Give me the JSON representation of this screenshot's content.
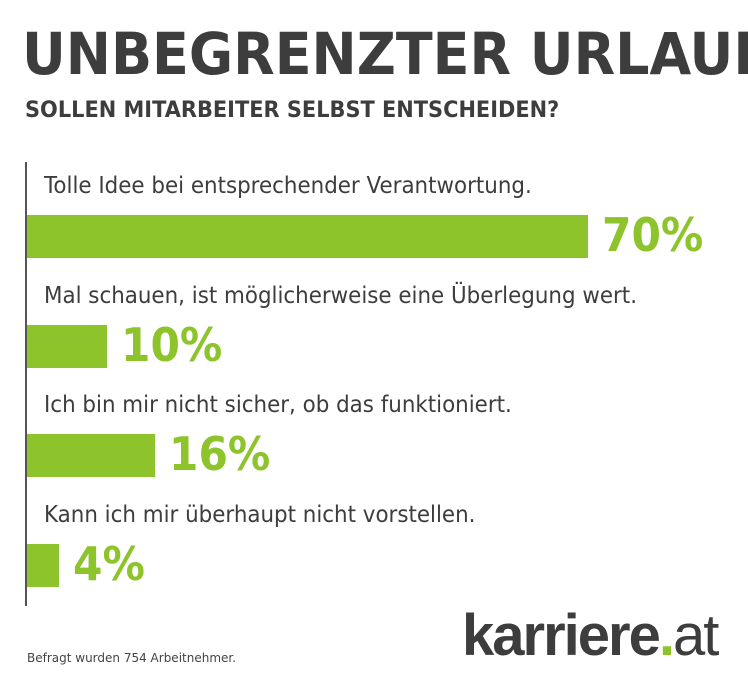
{
  "colors": {
    "bar": "#8dc32b",
    "text": "#3d3d3d"
  },
  "chart_data": {
    "type": "bar",
    "orientation": "horizontal",
    "title": "UNBEGRENZTER URLAUB",
    "subtitle": "SOLLEN MITARBEITER SELBST ENTSCHEIDEN?",
    "categories": [
      "Tolle Idee bei entsprechender Verantwortung.",
      "Mal schauen, ist möglicherweise eine Überlegung wert.",
      "Ich bin mir nicht sicher, ob das funktioniert.",
      "Kann ich mir überhaupt nicht vorstellen."
    ],
    "values": [
      70,
      10,
      16,
      4
    ],
    "value_labels": [
      "70%",
      "10%",
      "16%",
      "4%"
    ],
    "unit": "%",
    "xlim": [
      0,
      100
    ],
    "grid": false,
    "footnote": "Befragt wurden 754 Arbeitnehmer."
  },
  "logo": {
    "brand": "karriere",
    "dot": ".",
    "tld": "at"
  }
}
